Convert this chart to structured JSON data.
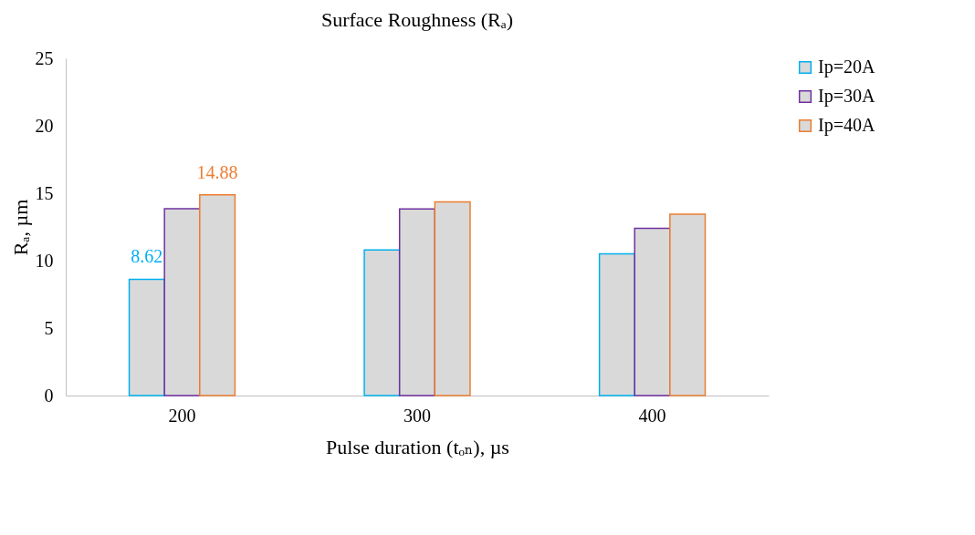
{
  "chart_data": {
    "type": "bar",
    "title": "Surface Roughness (Rₐ)",
    "xlabel": "Pulse duration (tₒₙ), µs",
    "ylabel": "Rₐ, µm",
    "categories": [
      "200",
      "300",
      "400"
    ],
    "series": [
      {
        "name": "Ip=20A",
        "color": "#00b0f0",
        "values": [
          8.62,
          10.8,
          10.5
        ],
        "value_labels": [
          "8.62",
          null,
          null
        ]
      },
      {
        "name": "Ip=30A",
        "color": "#7030a0",
        "values": [
          13.85,
          13.83,
          12.4
        ]
      },
      {
        "name": "Ip=40A",
        "color": "#ed7d31",
        "values": [
          14.88,
          14.35,
          13.45
        ],
        "value_labels": [
          "14.88",
          null,
          null
        ]
      }
    ],
    "ylim": [
      0,
      25
    ],
    "yticks": [
      0,
      5,
      10,
      15,
      20,
      25
    ],
    "grid": false,
    "legend": "right"
  }
}
